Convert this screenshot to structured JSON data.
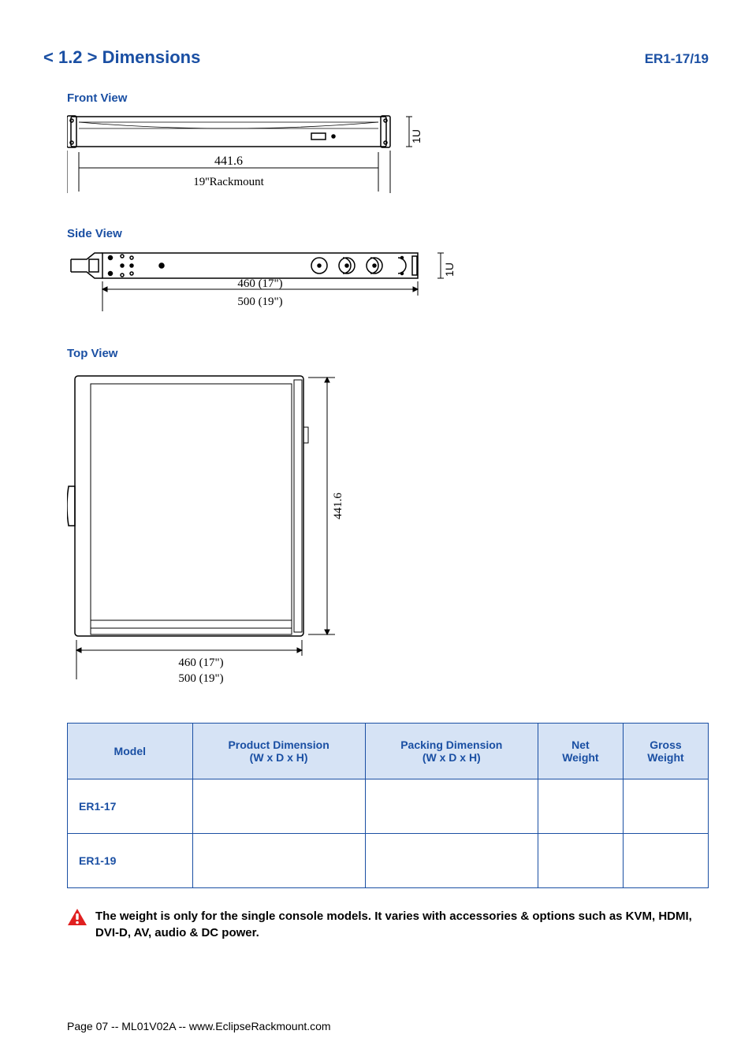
{
  "header": {
    "section_title": "< 1.2 > Dimensions",
    "model_code": "ER1-17/19"
  },
  "views": {
    "front": {
      "label": "Front View",
      "width_mm": "441.6",
      "rackmount_label": "19''Rackmount",
      "height_label": "1U"
    },
    "side": {
      "label": "Side View",
      "depth_17": "460 (17\")",
      "depth_19": "500 (19\")",
      "height_label": "1U"
    },
    "top": {
      "label": "Top View",
      "width_mm": "441.6",
      "depth_17": "460 (17\")",
      "depth_19": "500 (19\")"
    }
  },
  "table": {
    "headers": {
      "model": "Model",
      "product_dim": "Product Dimension",
      "product_dim_sub": "(W x D x H)",
      "packing_dim": "Packing Dimension",
      "packing_dim_sub": "(W x D x H)",
      "net_weight": "Net Weight",
      "gross_weight": "Gross Weight"
    },
    "rows": [
      {
        "model": "ER1-17",
        "product": "",
        "packing": "",
        "net": "",
        "gross": ""
      },
      {
        "model": "ER1-19",
        "product": "",
        "packing": "",
        "net": "",
        "gross": ""
      }
    ]
  },
  "note": "The weight is only for the single console models. It varies with accessories & options such as KVM, HDMI, DVI-D, AV, audio & DC power.",
  "footer": "Page 07 -- ML01V02A -- www.EclipseRackmount.com",
  "colors": {
    "primary": "#1a4fa3",
    "header_bg": "#d6e3f5",
    "warn": "#e02020",
    "diagram_stroke": "#000000"
  }
}
